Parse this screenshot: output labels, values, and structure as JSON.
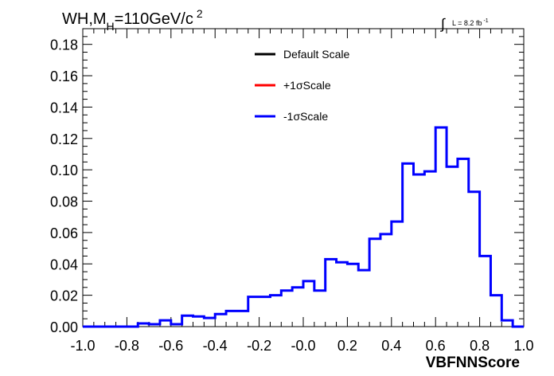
{
  "chart_data": {
    "type": "line",
    "title": "",
    "process_label": {
      "main": "WH,M",
      "sub": "H",
      "rest": "=110GeV/c",
      "sup": "2"
    },
    "lumi_label": {
      "integral_symbol": "∫",
      "text": "L = 8.2 fb",
      "sup": "-1"
    },
    "xlabel": "VBFNNScore",
    "ylabel": "",
    "xlim": [
      -1.0,
      1.0
    ],
    "ylim": [
      0,
      0.19
    ],
    "xticks": [
      "-1.0",
      "-0.8",
      "-0.6",
      "-0.4",
      "-0.2",
      "-0.0",
      "0.2",
      "0.4",
      "0.6",
      "0.8",
      "1.0"
    ],
    "yticks": [
      "0.00",
      "0.02",
      "0.04",
      "0.06",
      "0.08",
      "0.10",
      "0.12",
      "0.14",
      "0.16",
      "0.18"
    ],
    "bin_edges_start": -1.0,
    "bin_width": 0.05,
    "legend": {
      "placement": "top-center",
      "entries": [
        {
          "label": "Default Scale",
          "color": "#000000"
        },
        {
          "label": "+1σScale",
          "color": "#ff0000"
        },
        {
          "label": "-1σScale",
          "color": "#0000ff"
        }
      ]
    },
    "series": [
      {
        "name": "-1σScale",
        "color": "#0000ff",
        "values": [
          0,
          0,
          0,
          0,
          0,
          0.002,
          0.0015,
          0.004,
          0.0015,
          0.007,
          0.0065,
          0.0055,
          0.008,
          0.01,
          0.01,
          0.019,
          0.019,
          0.02,
          0.023,
          0.025,
          0.029,
          0.023,
          0.043,
          0.041,
          0.04,
          0.036,
          0.056,
          0.059,
          0.067,
          0.104,
          0.097,
          0.099,
          0.127,
          0.102,
          0.107,
          0.086,
          0.045,
          0.02,
          0.004,
          0.0
        ]
      }
    ]
  }
}
